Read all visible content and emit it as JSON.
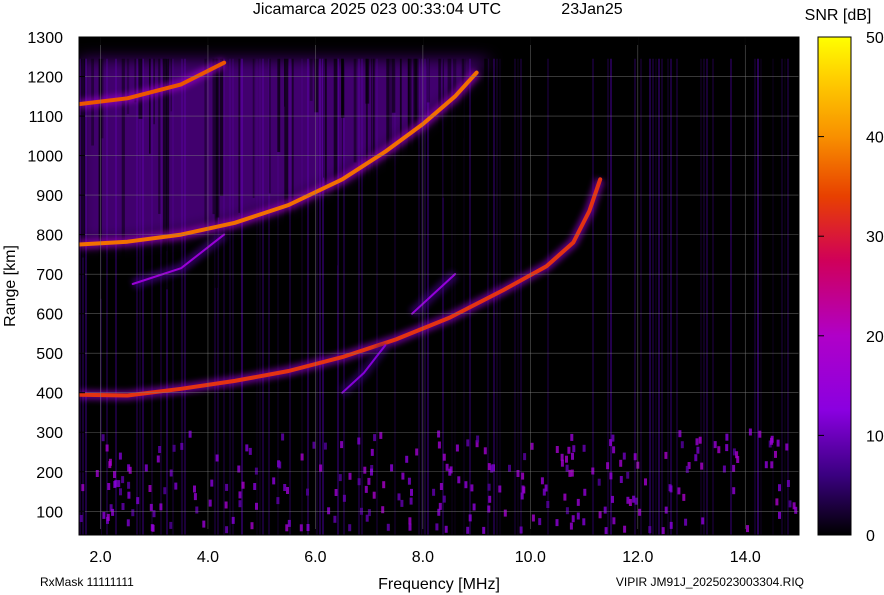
{
  "chart_data": {
    "type": "heatmap",
    "title": "Jicamarca 2025 023 00:33:04 UTC",
    "date": "23Jan25",
    "xlabel": "Frequency [MHz]",
    "ylabel": "Range [km]",
    "xlim": [
      1.6,
      15.0
    ],
    "ylim": [
      40,
      1300
    ],
    "x_ticks": [
      "2.0",
      "4.0",
      "6.0",
      "8.0",
      "10.0",
      "12.0",
      "14.0"
    ],
    "x_tick_values": [
      2,
      4,
      6,
      8,
      10,
      12,
      14
    ],
    "y_ticks": [
      "100",
      "200",
      "300",
      "400",
      "500",
      "600",
      "700",
      "800",
      "900",
      "1000",
      "1100",
      "1200",
      "1300"
    ],
    "y_tick_values": [
      100,
      200,
      300,
      400,
      500,
      600,
      700,
      800,
      900,
      1000,
      1100,
      1200,
      1300
    ],
    "colorbar": {
      "label": "SNR [dB]",
      "range": [
        0,
        50
      ],
      "ticks": [
        "0",
        "10",
        "20",
        "30",
        "40",
        "50"
      ],
      "tick_values": [
        0,
        10,
        20,
        30,
        40,
        50
      ],
      "colormap": [
        "#000000",
        "#3a0080",
        "#8a00e0",
        "#b000c8",
        "#d0005a",
        "#e84000",
        "#f89000",
        "#ffd000",
        "#ffff00"
      ]
    },
    "data_range_limit_km": 1245,
    "traces": [
      {
        "points": [
          [
            1.6,
            395
          ],
          [
            2.5,
            393
          ],
          [
            3.5,
            410
          ],
          [
            4.5,
            430
          ],
          [
            5.5,
            455
          ],
          [
            6.5,
            490
          ],
          [
            7.5,
            535
          ],
          [
            8.5,
            590
          ],
          [
            9.5,
            660
          ],
          [
            10.3,
            720
          ],
          [
            10.8,
            780
          ],
          [
            11.1,
            860
          ],
          [
            11.3,
            940
          ]
        ],
        "snr": 30
      },
      {
        "points": [
          [
            1.6,
            775
          ],
          [
            2.5,
            782
          ],
          [
            3.5,
            800
          ],
          [
            4.5,
            830
          ],
          [
            5.5,
            875
          ],
          [
            6.5,
            940
          ],
          [
            7.3,
            1010
          ],
          [
            8.0,
            1080
          ],
          [
            8.6,
            1150
          ],
          [
            9.0,
            1210
          ]
        ],
        "snr": 35
      },
      {
        "points": [
          [
            1.6,
            1130
          ],
          [
            2.5,
            1145
          ],
          [
            3.5,
            1180
          ],
          [
            4.3,
            1235
          ]
        ],
        "snr": 33
      },
      {
        "points": [
          [
            2.6,
            675
          ],
          [
            3.5,
            715
          ],
          [
            4.3,
            800
          ]
        ],
        "snr": 15
      },
      {
        "points": [
          [
            7.8,
            600
          ],
          [
            8.2,
            650
          ],
          [
            8.6,
            700
          ]
        ],
        "snr": 14
      },
      {
        "points": [
          [
            6.5,
            400
          ],
          [
            6.9,
            450
          ],
          [
            7.3,
            520
          ]
        ],
        "snr": 12
      }
    ],
    "clutter_band_km": [
      60,
      310
    ],
    "diffuse_region": {
      "x_range": [
        1.6,
        9.3
      ],
      "upper_km": 1245
    }
  },
  "footer": {
    "rxmask": "RxMask 11111111",
    "file": "VIPIR  JM91J_2025023003304.RIQ"
  }
}
